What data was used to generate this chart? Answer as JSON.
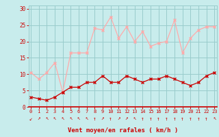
{
  "x": [
    0,
    1,
    2,
    3,
    4,
    5,
    6,
    7,
    8,
    9,
    10,
    11,
    12,
    13,
    14,
    15,
    16,
    17,
    18,
    19,
    20,
    21,
    22,
    23
  ],
  "rafales": [
    10.5,
    8.5,
    10.5,
    13.5,
    4.5,
    16.5,
    16.5,
    16.5,
    24.0,
    23.5,
    27.5,
    21.0,
    24.5,
    20.0,
    23.0,
    18.5,
    19.5,
    20.0,
    26.5,
    16.5,
    21.0,
    23.5,
    24.5,
    24.5
  ],
  "moyen": [
    3.0,
    2.5,
    2.0,
    3.0,
    4.5,
    6.0,
    6.0,
    7.5,
    7.5,
    9.5,
    7.5,
    7.5,
    9.5,
    8.5,
    7.5,
    8.5,
    8.5,
    9.5,
    8.5,
    7.5,
    6.5,
    7.5,
    9.5,
    10.5
  ],
  "rafales_color": "#ffaaaa",
  "moyen_color": "#cc0000",
  "bg_color": "#c8ecec",
  "grid_color": "#99cccc",
  "axis_color": "#cc0000",
  "tick_color": "#cc0000",
  "xlabel": "Vent moyen/en rafales ( km/h )",
  "ylabel_ticks": [
    0,
    5,
    10,
    15,
    20,
    25,
    30
  ],
  "ylim": [
    0,
    31
  ],
  "xlim": [
    -0.3,
    23.3
  ],
  "arrows": [
    "↙",
    "↗",
    "↖",
    "↖",
    "↖",
    "↖",
    "↖",
    "↖",
    "↑",
    "↗",
    "↑",
    "↗",
    "↗",
    "↖",
    "↑",
    "↑",
    "↑",
    "↑",
    "↑",
    "↑",
    "↑",
    "↑",
    "↑",
    "↖"
  ]
}
